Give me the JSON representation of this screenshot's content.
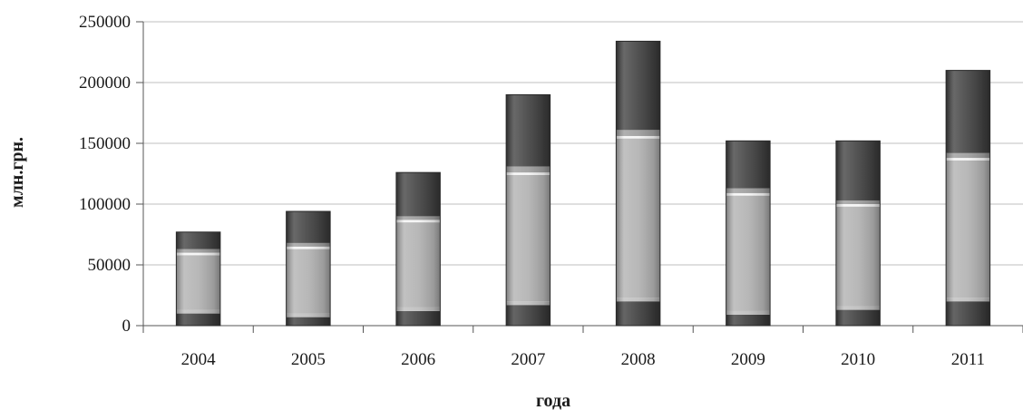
{
  "chart_data": {
    "type": "bar",
    "stacked": true,
    "title": "",
    "xlabel": "года",
    "ylabel": "млн.грн.",
    "ylim": [
      0,
      250000
    ],
    "yticks": [
      "0",
      "50000",
      "100000",
      "150000",
      "200000",
      "250000"
    ],
    "categories": [
      "2004",
      "2005",
      "2006",
      "2007",
      "2008",
      "2009",
      "2010",
      "2011"
    ],
    "grid": true,
    "legend": "none",
    "series": [
      {
        "values": [
          10000,
          7000,
          12000,
          17000,
          20000,
          9000,
          13000,
          20000
        ],
        "color": "#3a3a3a"
      },
      {
        "values": [
          3000,
          3000,
          3000,
          3000,
          3000,
          3000,
          3000,
          3000
        ],
        "color": "#bdbdbd"
      },
      {
        "values": [
          45000,
          53000,
          70000,
          104000,
          131000,
          95000,
          82000,
          113000
        ],
        "color": "#b0b0b0"
      },
      {
        "values": [
          2000,
          2000,
          2000,
          2000,
          2000,
          2000,
          2000,
          2000
        ],
        "color": "#f4f4f4"
      },
      {
        "values": [
          3000,
          3000,
          3000,
          5000,
          5000,
          4000,
          3000,
          4000
        ],
        "color": "#9a9a9a"
      },
      {
        "values": [
          14000,
          26000,
          36000,
          59000,
          73000,
          39000,
          49000,
          68000
        ],
        "color": "#3e3e3e"
      }
    ]
  }
}
